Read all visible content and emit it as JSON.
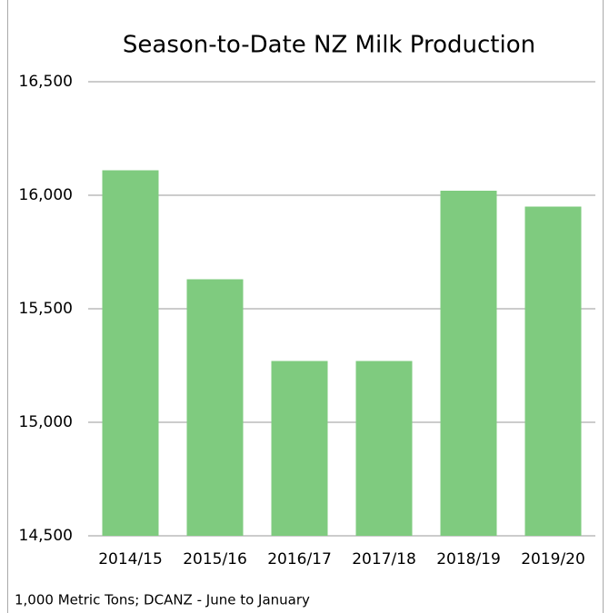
{
  "chart_data": {
    "type": "bar",
    "title": "Season-to-Date NZ Milk Production",
    "note": "1,000 Metric Tons; DCANZ - June to January",
    "categories": [
      "2014/15",
      "2015/16",
      "2016/17",
      "2017/18",
      "2018/19",
      "2019/20"
    ],
    "values": [
      16110,
      15630,
      15270,
      15270,
      16020,
      15950
    ],
    "color": "#7fcb7f",
    "ylim": [
      14500,
      16500
    ],
    "yticks": [
      {
        "value": 14500,
        "label": "14,500"
      },
      {
        "value": 15000,
        "label": "15,000"
      },
      {
        "value": 15500,
        "label": "15,500"
      },
      {
        "value": 16000,
        "label": "16,000"
      },
      {
        "value": 16500,
        "label": "16,500"
      }
    ],
    "grid": true
  }
}
